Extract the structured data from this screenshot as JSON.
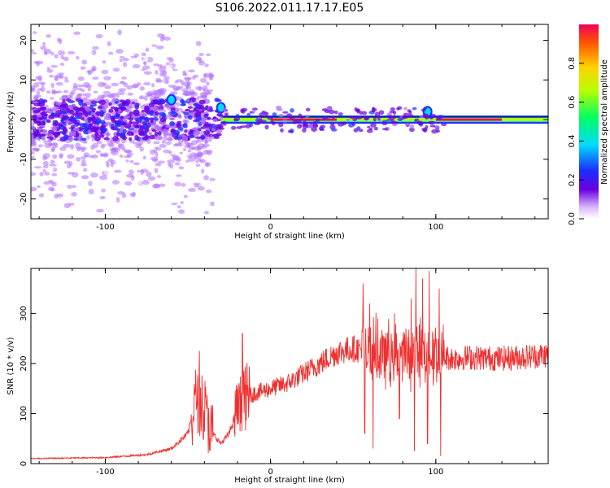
{
  "figure_title": "S106.2022.011.17.17.E05",
  "chart_data": [
    {
      "type": "heatmap",
      "title": "",
      "xlabel": "Height of straight line (km)",
      "ylabel": "Frequency (Hz)",
      "xlim": [
        -145,
        168
      ],
      "ylim": [
        -25,
        24
      ],
      "xticks": [
        "-100",
        "0",
        "100"
      ],
      "yticks": [
        "-20",
        "-10",
        "0",
        "10",
        "20"
      ],
      "colorbar": {
        "label": "Normalized spectral amplitude",
        "range": [
          0,
          1
        ],
        "ticks": [
          "0.0",
          "0.2",
          "0.4",
          "0.6",
          "0.8"
        ],
        "colormap": [
          "#ffffff",
          "#b070ff",
          "#6a00e0",
          "#1a2fff",
          "#00dcff",
          "#00ff60",
          "#b8ff00",
          "#ffd200",
          "#ff5a00",
          "#f0005a"
        ]
      },
      "description_values": {
        "line_frequency_hz": 0,
        "narrowband_start_km": -30,
        "broadband_region_km": [
          -145,
          -40
        ],
        "broadband_frequency_spread_hz": [
          -25,
          24
        ],
        "peak_frequency_near_km": [
          {
            "x": -60,
            "y": 5
          },
          {
            "x": -30,
            "y": 3
          },
          {
            "x": 95,
            "y": 2
          }
        ]
      }
    },
    {
      "type": "line",
      "title": "",
      "xlabel": "Height of straight line (km)",
      "ylabel": "SNR (10 * v/v)",
      "xlim": [
        -145,
        168
      ],
      "ylim": [
        0,
        390
      ],
      "xticks": [
        "-100",
        "0",
        "100"
      ],
      "yticks": [
        "0",
        "100",
        "200",
        "300"
      ],
      "series": [
        {
          "color": "#f03030",
          "envelope": [
            {
              "x": -145,
              "y": 10
            },
            {
              "x": -100,
              "y": 12
            },
            {
              "x": -75,
              "y": 18
            },
            {
              "x": -60,
              "y": 30
            },
            {
              "x": -50,
              "y": 60
            },
            {
              "x": -45,
              "y": 130
            },
            {
              "x": -40,
              "y": 110
            },
            {
              "x": -35,
              "y": 60
            },
            {
              "x": -30,
              "y": 40
            },
            {
              "x": -25,
              "y": 60
            },
            {
              "x": -20,
              "y": 110
            },
            {
              "x": -15,
              "y": 130
            },
            {
              "x": -10,
              "y": 140
            },
            {
              "x": 0,
              "y": 150
            },
            {
              "x": 10,
              "y": 160
            },
            {
              "x": 20,
              "y": 180
            },
            {
              "x": 30,
              "y": 200
            },
            {
              "x": 40,
              "y": 222
            },
            {
              "x": 50,
              "y": 230
            },
            {
              "x": 60,
              "y": 225
            },
            {
              "x": 70,
              "y": 215
            },
            {
              "x": 80,
              "y": 215
            },
            {
              "x": 90,
              "y": 220
            },
            {
              "x": 100,
              "y": 215
            },
            {
              "x": 110,
              "y": 210
            },
            {
              "x": 120,
              "y": 212
            },
            {
              "x": 140,
              "y": 210
            },
            {
              "x": 160,
              "y": 215
            },
            {
              "x": 168,
              "y": 218
            }
          ],
          "peaks": [
            {
              "x": -43,
              "y": 225
            },
            {
              "x": -17,
              "y": 260
            },
            {
              "x": 56,
              "y": 360
            },
            {
              "x": 60,
              "y": 320
            },
            {
              "x": 65,
              "y": 290
            },
            {
              "x": 75,
              "y": 300
            },
            {
              "x": 85,
              "y": 330
            },
            {
              "x": 88,
              "y": 390
            },
            {
              "x": 92,
              "y": 370
            },
            {
              "x": 96,
              "y": 385
            },
            {
              "x": 102,
              "y": 350
            }
          ],
          "dips": [
            {
              "x": 57,
              "y": 60
            },
            {
              "x": 62,
              "y": 30
            },
            {
              "x": 78,
              "y": 90
            },
            {
              "x": 87,
              "y": 25
            },
            {
              "x": 95,
              "y": 40
            },
            {
              "x": 103,
              "y": 15
            }
          ]
        }
      ]
    }
  ]
}
